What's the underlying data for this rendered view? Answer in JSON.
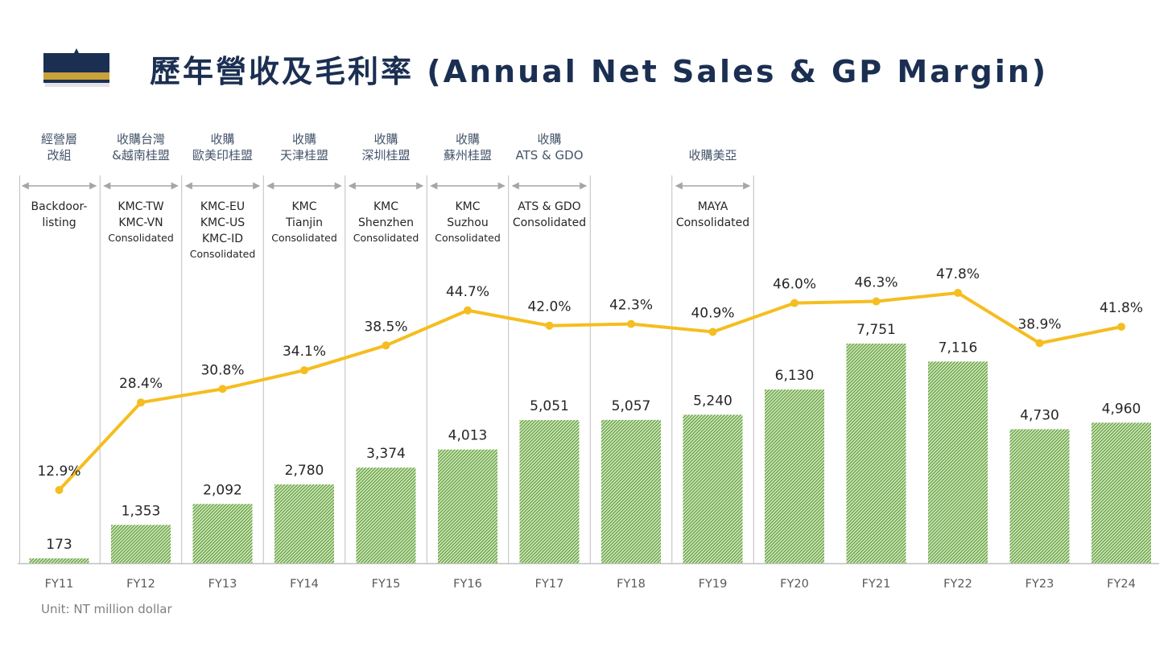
{
  "page": {
    "title": "歷年營收及毛利率 (Annual Net Sales & GP Margin)",
    "unit_note": "Unit: NT million dollar"
  },
  "colors": {
    "navy": "#1b2f52",
    "gold": "#c9a23a",
    "bar": "#70ad47",
    "line": "#f5bd1f"
  },
  "chart_data": {
    "type": "bar",
    "title": "歷年營收及毛利率 (Annual Net Sales & GP Margin)",
    "categories": [
      "FY11",
      "FY12",
      "FY13",
      "FY14",
      "FY15",
      "FY16",
      "FY17",
      "FY18",
      "FY19",
      "FY20",
      "FY21",
      "FY22",
      "FY23",
      "FY24"
    ],
    "series": [
      {
        "kind": "bar",
        "values": [
          173,
          1353,
          2092,
          2780,
          3374,
          4013,
          5051,
          5057,
          5240,
          6130,
          7751,
          7116,
          4730,
          4960
        ],
        "labels": [
          "173",
          "1,353",
          "2,092",
          "2,780",
          "3,374",
          "4,013",
          "5,051",
          "5,057",
          "5,240",
          "6,130",
          "7,751",
          "7,116",
          "4,730",
          "4,960"
        ]
      },
      {
        "kind": "line",
        "values": [
          12.9,
          28.4,
          30.8,
          34.1,
          38.5,
          44.7,
          42.0,
          42.3,
          40.9,
          46.0,
          46.3,
          47.8,
          38.9,
          41.8
        ],
        "labels": [
          "12.9%",
          "28.4%",
          "30.8%",
          "34.1%",
          "38.5%",
          "44.7%",
          "42.0%",
          "42.3%",
          "40.9%",
          "46.0%",
          "46.3%",
          "47.8%",
          "38.9%",
          "41.8%"
        ]
      }
    ],
    "ylim_bars": [
      0,
      7751
    ],
    "ylim_line": [
      12.9,
      47.8
    ],
    "annotations": [
      {
        "index": 0,
        "top": [
          "經營層",
          "改組"
        ],
        "bottom": [
          "Backdoor-",
          "listing"
        ],
        "consolidated": false
      },
      {
        "index": 1,
        "top": [
          "收購台灣",
          "&越南桂盟"
        ],
        "bottom": [
          "KMC-TW",
          "KMC-VN"
        ],
        "consolidated": true
      },
      {
        "index": 2,
        "top": [
          "收購",
          "歐美印桂盟"
        ],
        "bottom": [
          "KMC-EU",
          "KMC-US",
          "KMC-ID"
        ],
        "consolidated": true
      },
      {
        "index": 3,
        "top": [
          "收購",
          "天津桂盟"
        ],
        "bottom": [
          "KMC",
          "Tianjin"
        ],
        "consolidated": true
      },
      {
        "index": 4,
        "top": [
          "收購",
          "深圳桂盟"
        ],
        "bottom": [
          "KMC",
          "Shenzhen"
        ],
        "consolidated": true
      },
      {
        "index": 5,
        "top": [
          "收購",
          "蘇州桂盟"
        ],
        "bottom": [
          "KMC",
          "Suzhou"
        ],
        "consolidated": true
      },
      {
        "index": 6,
        "top": [
          "收購",
          "ATS & GDO"
        ],
        "bottom": [
          "ATS & GDO",
          "Consolidated"
        ],
        "consolidated": false
      },
      {
        "index": 8,
        "top": [
          "收購美亞"
        ],
        "bottom": [
          "MAYA",
          "Consolidated"
        ],
        "consolidated": false
      }
    ],
    "consolidated_word": "Consolidated"
  }
}
